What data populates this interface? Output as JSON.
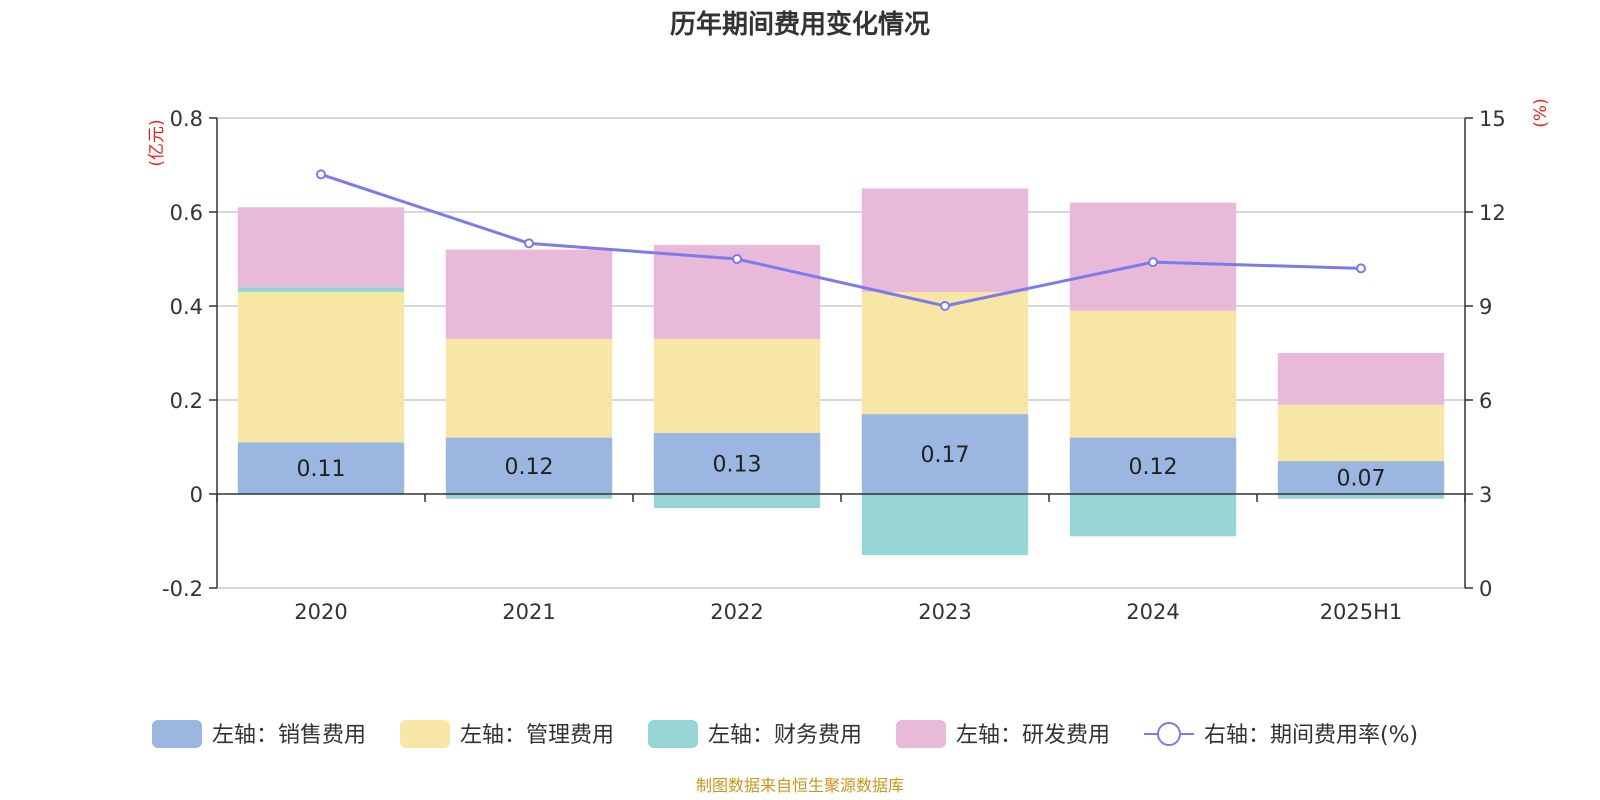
{
  "chart_data": {
    "type": "bar",
    "title": "历年期间费用变化情况",
    "categories": [
      "2020",
      "2021",
      "2022",
      "2023",
      "2024",
      "2025H1"
    ],
    "left_axis": {
      "unit": "(亿元)",
      "ticks": [
        "-0.2",
        "0",
        "0.2",
        "0.4",
        "0.6",
        "0.8"
      ],
      "ylim": [
        -0.2,
        0.8
      ]
    },
    "right_axis": {
      "unit": "(%)",
      "ticks": [
        "0",
        "3",
        "6",
        "9",
        "12",
        "15"
      ],
      "ylim": [
        0,
        15
      ]
    },
    "series": [
      {
        "name": "左轴：销售费用",
        "type": "bar",
        "axis": "left",
        "color": "#9bb6e0",
        "values": [
          0.11,
          0.12,
          0.13,
          0.17,
          0.12,
          0.07
        ],
        "labels": [
          "0.11",
          "0.12",
          "0.13",
          "0.17",
          "0.12",
          "0.07"
        ]
      },
      {
        "name": "左轴：管理费用",
        "type": "bar",
        "axis": "left",
        "color": "#f7e6a6",
        "values": [
          0.32,
          0.21,
          0.2,
          0.26,
          0.27,
          0.12
        ]
      },
      {
        "name": "左轴：财务费用",
        "type": "bar",
        "axis": "left",
        "color": "#97d4d6",
        "values": [
          0.01,
          -0.01,
          -0.03,
          -0.13,
          -0.09,
          -0.01
        ]
      },
      {
        "name": "左轴：研发费用",
        "type": "bar",
        "axis": "left",
        "color": "#e8b9d9",
        "values": [
          0.17,
          0.19,
          0.2,
          0.22,
          0.23,
          0.11
        ]
      },
      {
        "name": "右轴：期间费用率(%)",
        "type": "line",
        "axis": "right",
        "color": "#7b7bea",
        "values": [
          13.2,
          11.0,
          10.5,
          9.0,
          10.4,
          10.2
        ]
      }
    ],
    "grid": true,
    "legend_position": "bottom"
  },
  "source_note": "制图数据来自恒生聚源数据库"
}
